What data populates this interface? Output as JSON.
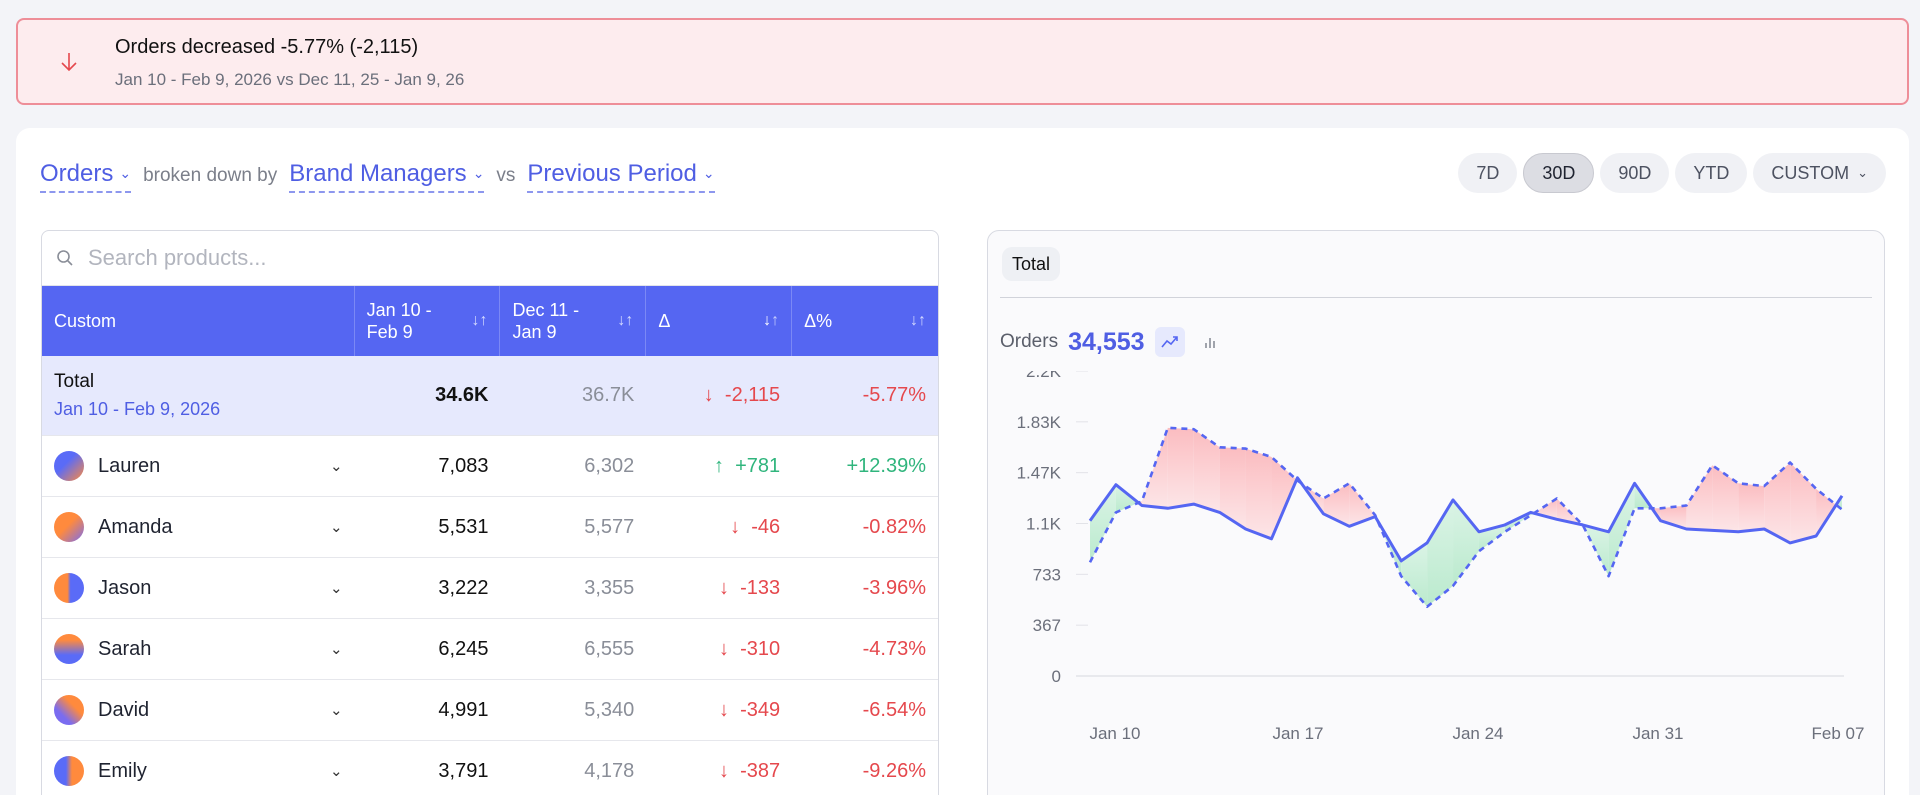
{
  "alert": {
    "icon": "arrow-down-icon",
    "title": "Orders decreased -5.77% (-2,115)",
    "subtitle": "Jan 10 - Feb 9, 2026 vs Dec 11, 25 - Jan 9, 26"
  },
  "controls": {
    "metric": "Orders",
    "broken_by_text": "broken down by",
    "dimension": "Brand Managers",
    "vs_text": "vs",
    "comparison": "Previous Period",
    "ranges": [
      "7D",
      "30D",
      "90D",
      "YTD",
      "CUSTOM"
    ],
    "active_range": "30D"
  },
  "search": {
    "placeholder": "Search products..."
  },
  "table": {
    "headers": [
      "Custom",
      "Jan 10 - Feb 9",
      "Dec 11 - Jan 9",
      "Δ",
      "Δ%"
    ],
    "total": {
      "name": "Total",
      "date": "Jan 10 - Feb 9, 2026",
      "current": "34.6K",
      "previous": "36.7K",
      "delta": "-2,115",
      "delta_pct": "-5.77%"
    },
    "rows": [
      {
        "name": "Lauren",
        "current": "7,083",
        "previous": "6,302",
        "delta": "+781",
        "delta_pct": "+12.39%",
        "trend": "up"
      },
      {
        "name": "Amanda",
        "current": "5,531",
        "previous": "5,577",
        "delta": "-46",
        "delta_pct": "-0.82%",
        "trend": "down"
      },
      {
        "name": "Jason",
        "current": "3,222",
        "previous": "3,355",
        "delta": "-133",
        "delta_pct": "-3.96%",
        "trend": "down"
      },
      {
        "name": "Sarah",
        "current": "6,245",
        "previous": "6,555",
        "delta": "-310",
        "delta_pct": "-4.73%",
        "trend": "down"
      },
      {
        "name": "David",
        "current": "4,991",
        "previous": "5,340",
        "delta": "-349",
        "delta_pct": "-6.54%",
        "trend": "down"
      },
      {
        "name": "Emily",
        "current": "3,791",
        "previous": "4,178",
        "delta": "-387",
        "delta_pct": "-9.26%",
        "trend": "down"
      }
    ]
  },
  "chart_panel": {
    "tab": "Total",
    "metric_label": "Orders",
    "metric_value": "34,553"
  },
  "colors": {
    "accent": "#5566f2",
    "negative": "#e5484d",
    "positive": "#30b57d"
  },
  "chart_data": {
    "type": "line",
    "y_ticks": [
      "2.2K",
      "1.83K",
      "1.47K",
      "1.1K",
      "733",
      "367",
      "0"
    ],
    "x_ticks": [
      "Jan 10",
      "Jan 17",
      "Jan 24",
      "Jan 31",
      "Feb 07"
    ],
    "ylim": [
      0,
      2200
    ],
    "series": [
      {
        "values": [
          1120,
          1380,
          1230,
          1210,
          1240,
          1180,
          1060,
          990,
          1430,
          1170,
          1080,
          1150,
          830,
          960,
          1270,
          1040,
          1090,
          1180,
          1130,
          1090,
          1040,
          1390,
          1120,
          1060,
          1050,
          1040,
          1060,
          960,
          1010,
          1300
        ]
      },
      {
        "values": [
          820,
          1180,
          1260,
          1790,
          1780,
          1650,
          1640,
          1580,
          1410,
          1280,
          1390,
          1160,
          720,
          500,
          650,
          900,
          1040,
          1160,
          1280,
          1090,
          720,
          1210,
          1210,
          1230,
          1520,
          1390,
          1370,
          1540,
          1350,
          1200
        ],
        "style": "dashed"
      }
    ]
  }
}
